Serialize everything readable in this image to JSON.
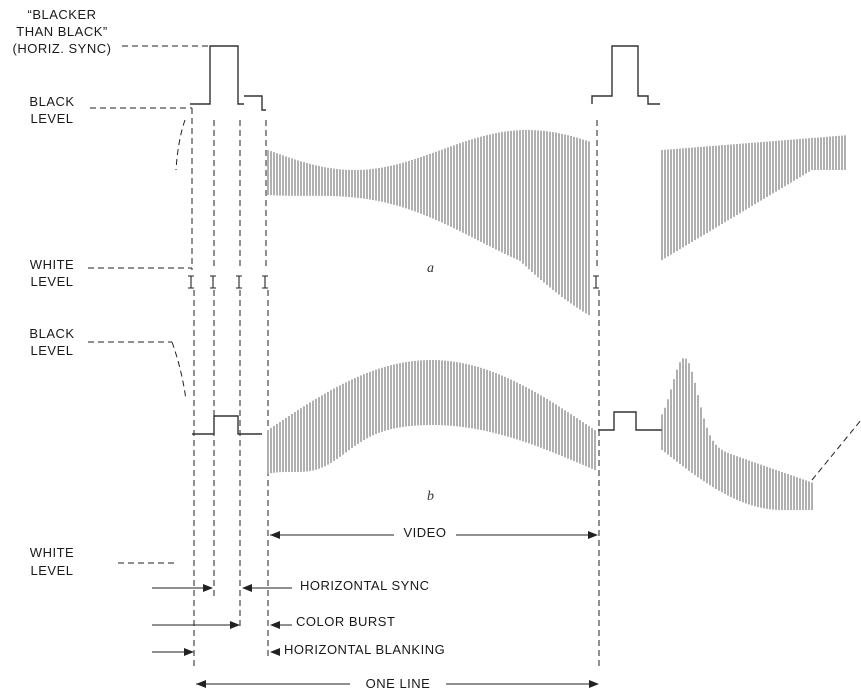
{
  "labels": {
    "blacker_than_black": [
      "“BLACKER",
      "THAN BLACK”",
      "(HORIZ. SYNC)"
    ],
    "black_level_a": [
      "BLACK",
      "LEVEL"
    ],
    "white_level_a": [
      "WHITE",
      "LEVEL"
    ],
    "black_level_b": [
      "BLACK",
      "LEVEL"
    ],
    "white_level_b": [
      "WHITE",
      "LEVEL"
    ],
    "waveform_a": "a",
    "waveform_b": "b",
    "video": "VIDEO",
    "horizontal_sync": "HORIZONTAL SYNC",
    "color_burst": "COLOR BURST",
    "horizontal_blanking": "HORIZONTAL BLANKING",
    "one_line": "ONE LINE"
  },
  "colors": {
    "ink": "#222222",
    "waveform_fill": "#6f6f6f"
  }
}
